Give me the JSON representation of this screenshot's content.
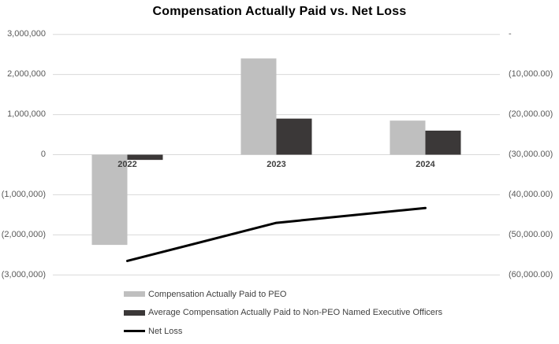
{
  "chart_data": {
    "type": "combo-bar-line",
    "title": "Compensation Actually Paid vs. Net Loss",
    "categories": [
      "2022",
      "2023",
      "2024"
    ],
    "series": [
      {
        "name": "Compensation Actually Paid to PEO",
        "type": "bar",
        "axis": "left",
        "color": "#bfbfbf",
        "values": [
          -2250000,
          2400000,
          850000
        ]
      },
      {
        "name": "Average Compensation Actually Paid to Non-PEO Named Executive Officers",
        "type": "bar",
        "axis": "left",
        "color": "#3b3838",
        "values": [
          -130000,
          900000,
          600000
        ]
      },
      {
        "name": "Net Loss",
        "type": "line",
        "axis": "right",
        "color": "#000000",
        "values": [
          -56500,
          -47000,
          -43300
        ]
      }
    ],
    "left_axis": {
      "min": -3000000,
      "max": 3000000,
      "ticks": [
        "3,000,000",
        "2,000,000",
        "1,000,000",
        "0",
        "(1,000,000)",
        "(2,000,000)",
        "(3,000,000)"
      ]
    },
    "right_axis": {
      "min": -60000,
      "max": 0,
      "ticks": [
        "-",
        "(10,000.00)",
        "(20,000.00)",
        "(30,000.00)",
        "(40,000.00)",
        "(50,000.00)",
        "(60,000.00)"
      ]
    },
    "grid": true,
    "gridline_color": "#d9d9d9",
    "legend_position": "bottom-left",
    "legend": [
      "Compensation Actually Paid to PEO",
      "Average Compensation Actually Paid to Non-PEO Named Executive Officers",
      "Net Loss"
    ]
  }
}
